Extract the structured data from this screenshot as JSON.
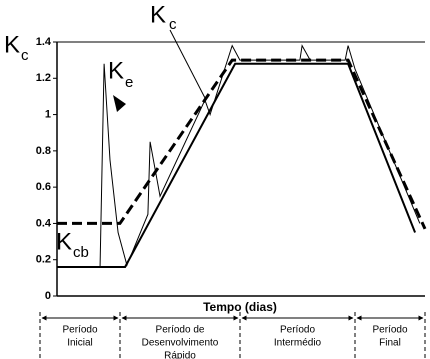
{
  "chart_data": {
    "type": "line",
    "y_label": {
      "main": "K",
      "sub": "c"
    },
    "x_label": "Tempo (dias)",
    "xlim": [
      0,
      100
    ],
    "ylim": [
      0,
      1.4
    ],
    "yticks": [
      0,
      0.2,
      0.4,
      0.6,
      0.8,
      1,
      1.2,
      1.4
    ],
    "series": [
      {
        "color": "#000000",
        "dashed": true,
        "width": 3,
        "x": [
          0,
          17.1,
          47.6,
          79.1,
          100
        ],
        "values": [
          0.4,
          0.4,
          1.3,
          1.3,
          0.37
        ]
      },
      {
        "color": "#000000",
        "dashed": false,
        "width": 2,
        "x": [
          0,
          18.5,
          48.4,
          79.1,
          97.3
        ],
        "values": [
          0.16,
          0.16,
          1.28,
          1.28,
          0.35
        ]
      },
      {
        "color": "#000000",
        "dashed": false,
        "width": 1,
        "x": [
          0,
          11.7,
          12.8,
          14.4,
          16.6,
          19.0,
          24.7,
          25.3,
          28.0,
          40.2,
          41.6,
          47.6,
          49.7,
          66.0,
          66.6,
          68.8,
          78.3,
          79.1,
          81.0,
          98.6
        ],
        "values": [
          0.16,
          0.16,
          1.28,
          0.75,
          0.35,
          0.17,
          0.45,
          0.85,
          0.55,
          1.08,
          1.0,
          1.38,
          1.3,
          1.3,
          1.38,
          1.3,
          1.3,
          1.38,
          1.25,
          0.4
        ]
      }
    ],
    "annotations": [
      {
        "main": "K",
        "sub": "c"
      },
      {
        "main": "K",
        "sub": "e"
      },
      {
        "main": "K",
        "sub": "cb"
      }
    ],
    "stages": [
      [
        "Período",
        "Inicial"
      ],
      [
        "Período  de",
        "Desenvolvimento",
        "Rápido"
      ],
      [
        "Período",
        "Intermédio"
      ],
      [
        "Período",
        "Final"
      ]
    ]
  }
}
